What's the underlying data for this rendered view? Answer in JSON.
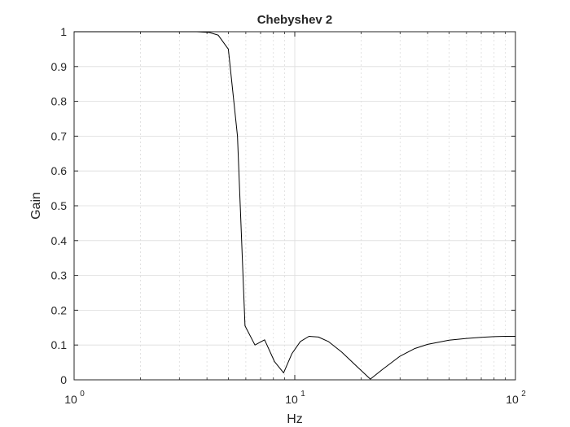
{
  "chart_data": {
    "type": "line",
    "title": "Chebyshev 2",
    "xlabel": "Hz",
    "ylabel": "Gain",
    "xscale": "log",
    "xlim": [
      1,
      100
    ],
    "ylim": [
      0,
      1
    ],
    "grid": true,
    "line_color": "#000000",
    "grid_color": "#dcdcdc",
    "x_tick_labels": [
      {
        "base": "10",
        "exp": "0"
      },
      {
        "base": "10",
        "exp": "1"
      },
      {
        "base": "10",
        "exp": "2"
      }
    ],
    "y_tick_labels": [
      "0",
      "0.1",
      "0.2",
      "0.3",
      "0.4",
      "0.5",
      "0.6",
      "0.7",
      "0.8",
      "0.9",
      "1"
    ],
    "series": [
      {
        "x": [
          1,
          2,
          3,
          3.6,
          4.1,
          4.5,
          5.0,
          5.5,
          5.95,
          6.6,
          7.3,
          8.1,
          8.9,
          9.7,
          10.6,
          11.6,
          12.8,
          14.2,
          16.3,
          19.0,
          22.0,
          25.0,
          30.0,
          35.0,
          40.0,
          50.0,
          60.0,
          70.0,
          80.0,
          90.0,
          100.0
        ],
        "y": [
          1.0,
          1.0,
          1.0,
          1.0,
          0.998,
          0.99,
          0.95,
          0.7,
          0.155,
          0.1,
          0.115,
          0.052,
          0.02,
          0.075,
          0.11,
          0.125,
          0.123,
          0.11,
          0.08,
          0.04,
          0.002,
          0.03,
          0.068,
          0.09,
          0.102,
          0.114,
          0.119,
          0.122,
          0.124,
          0.125,
          0.125
        ]
      }
    ]
  }
}
